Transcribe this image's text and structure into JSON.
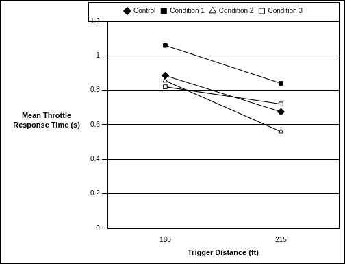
{
  "chart_data": {
    "type": "line",
    "x_label": "Trigger Distance (ft)",
    "y_label": "Mean Throttle Response Time (s)",
    "categories": [
      "180",
      "215"
    ],
    "series": [
      {
        "name": "Control",
        "color": "#000000",
        "marker": "diamond",
        "values": [
          0.885,
          0.675
        ]
      },
      {
        "name": "Condition 1",
        "color": "#000000",
        "marker": "square",
        "values": [
          1.06,
          0.84
        ]
      },
      {
        "name": "Condition 2",
        "color": "#000000",
        "marker": "triangle-open",
        "values": [
          0.855,
          0.56
        ]
      },
      {
        "name": "Condition 3",
        "color": "#000000",
        "marker": "square-open",
        "values": [
          0.82,
          0.72
        ]
      }
    ],
    "ylim": [
      0,
      1.2
    ],
    "yticks": [
      0,
      0.2,
      0.4,
      0.6,
      0.8,
      1,
      1.2
    ],
    "grid": true,
    "legend": "top"
  }
}
